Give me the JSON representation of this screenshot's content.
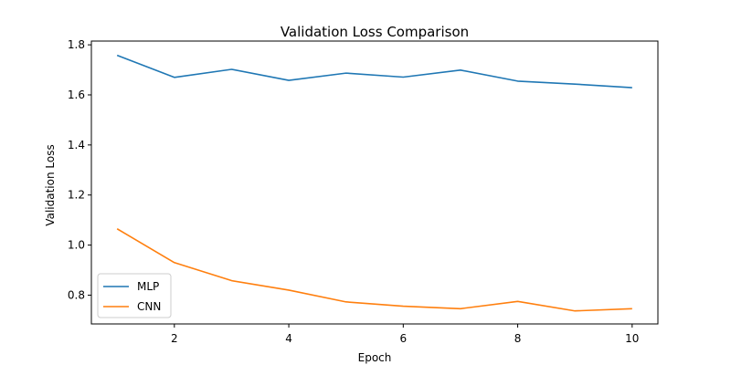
{
  "chart_data": {
    "type": "line",
    "title": "Validation Loss Comparison",
    "xlabel": "Epoch",
    "ylabel": "Validation Loss",
    "x": [
      1,
      2,
      3,
      4,
      5,
      6,
      7,
      8,
      9,
      10
    ],
    "xticks": [
      2,
      4,
      6,
      8,
      10
    ],
    "yticks": [
      0.8,
      1.0,
      1.2,
      1.4,
      1.6,
      1.8
    ],
    "xlim": [
      0.55,
      10.45
    ],
    "ylim": [
      0.685,
      1.815
    ],
    "grid": false,
    "legend_position": "lower-left",
    "series": [
      {
        "name": "MLP",
        "color": "#1f77b4",
        "values": [
          1.758,
          1.67,
          1.702,
          1.658,
          1.687,
          1.671,
          1.699,
          1.655,
          1.643,
          1.629
        ]
      },
      {
        "name": "CNN",
        "color": "#ff7f0e",
        "values": [
          1.065,
          0.93,
          0.858,
          0.82,
          0.773,
          0.756,
          0.746,
          0.775,
          0.737,
          0.746
        ]
      }
    ]
  }
}
